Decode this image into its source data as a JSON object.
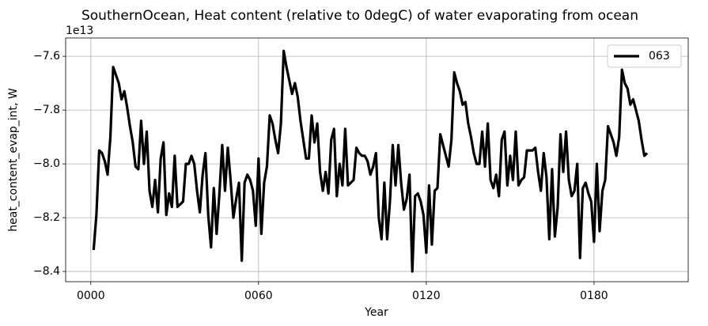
{
  "chart_data": {
    "type": "line",
    "title": "SouthernOcean, Heat content (relative to 0degC) of water evaporating from ocean",
    "xlabel": "Year",
    "ylabel": "heat_content_evap_int, W",
    "y_offset_label": "1e13",
    "x": [
      1,
      2,
      3,
      4,
      5,
      6,
      7,
      8,
      9,
      10,
      11,
      12,
      13,
      14,
      15,
      16,
      17,
      18,
      19,
      20,
      21,
      22,
      23,
      24,
      25,
      26,
      27,
      28,
      29,
      30,
      31,
      32,
      33,
      34,
      35,
      36,
      37,
      38,
      39,
      40,
      41,
      42,
      43,
      44,
      45,
      46,
      47,
      48,
      49,
      50,
      51,
      52,
      53,
      54,
      55,
      56,
      57,
      58,
      59,
      60,
      61,
      62,
      63,
      64,
      65,
      66,
      67,
      68,
      69,
      70,
      71,
      72,
      73,
      74,
      75,
      76,
      77,
      78,
      79,
      80,
      81,
      82,
      83,
      84,
      85,
      86,
      87,
      88,
      89,
      90,
      91,
      92,
      93,
      94,
      95,
      96,
      97,
      98,
      99,
      100,
      101,
      102,
      103,
      104,
      105,
      106,
      107,
      108,
      109,
      110,
      111,
      112,
      113,
      114,
      115,
      116,
      117,
      118,
      119,
      120,
      121,
      122,
      123,
      124,
      125,
      126,
      127,
      128,
      129,
      130,
      131,
      132,
      133,
      134,
      135,
      136,
      137,
      138,
      139,
      140,
      141,
      142,
      143,
      144,
      145,
      146,
      147,
      148,
      149,
      150,
      151,
      152,
      153,
      154,
      155,
      156,
      157,
      158,
      159,
      160,
      161,
      162,
      163,
      164,
      165,
      166,
      167,
      168,
      169,
      170,
      171,
      172,
      173,
      174,
      175,
      176,
      177,
      178,
      179,
      180,
      181,
      182,
      183,
      184,
      185,
      186,
      187,
      188,
      189,
      190,
      191,
      192,
      193,
      194,
      195,
      196,
      197,
      198,
      199
    ],
    "series": [
      {
        "name": "063",
        "color": "#000000",
        "values": [
          -8.32,
          -8.19,
          -7.95,
          -7.96,
          -7.99,
          -8.04,
          -7.9,
          -7.64,
          -7.67,
          -7.7,
          -7.76,
          -7.73,
          -7.79,
          -7.86,
          -7.92,
          -8.01,
          -8.02,
          -7.84,
          -8.0,
          -7.88,
          -8.1,
          -8.16,
          -8.06,
          -8.18,
          -7.98,
          -7.92,
          -8.19,
          -8.11,
          -8.16,
          -7.97,
          -8.16,
          -8.15,
          -8.14,
          -8.0,
          -8.0,
          -7.97,
          -8.0,
          -8.1,
          -8.18,
          -8.04,
          -7.96,
          -8.19,
          -8.31,
          -8.09,
          -8.26,
          -8.11,
          -7.93,
          -8.1,
          -7.94,
          -8.06,
          -8.2,
          -8.13,
          -8.07,
          -8.36,
          -8.07,
          -8.04,
          -8.06,
          -8.1,
          -8.23,
          -7.98,
          -8.26,
          -8.07,
          -8.01,
          -7.82,
          -7.85,
          -7.91,
          -7.96,
          -7.85,
          -7.58,
          -7.64,
          -7.69,
          -7.74,
          -7.7,
          -7.75,
          -7.84,
          -7.91,
          -7.98,
          -7.98,
          -7.82,
          -7.92,
          -7.85,
          -8.03,
          -8.1,
          -8.03,
          -8.11,
          -7.91,
          -7.87,
          -8.12,
          -8.0,
          -8.08,
          -7.87,
          -8.08,
          -8.07,
          -8.06,
          -7.94,
          -7.96,
          -7.97,
          -7.97,
          -7.99,
          -8.04,
          -8.01,
          -7.96,
          -8.2,
          -8.28,
          -8.07,
          -8.28,
          -8.14,
          -7.93,
          -8.08,
          -7.93,
          -8.07,
          -8.17,
          -8.13,
          -8.04,
          -8.4,
          -8.12,
          -8.11,
          -8.14,
          -8.19,
          -8.33,
          -8.08,
          -8.3,
          -8.1,
          -8.09,
          -7.89,
          -7.93,
          -7.97,
          -8.01,
          -7.91,
          -7.66,
          -7.7,
          -7.73,
          -7.78,
          -7.77,
          -7.85,
          -7.9,
          -7.96,
          -8.0,
          -8.0,
          -7.88,
          -8.01,
          -7.85,
          -8.06,
          -8.09,
          -8.04,
          -8.12,
          -7.91,
          -7.88,
          -8.08,
          -7.97,
          -8.06,
          -7.88,
          -8.08,
          -8.06,
          -8.05,
          -7.95,
          -7.95,
          -7.95,
          -7.94,
          -8.03,
          -8.1,
          -7.96,
          -8.05,
          -8.28,
          -8.02,
          -8.27,
          -8.16,
          -7.89,
          -8.03,
          -7.88,
          -8.06,
          -8.12,
          -8.1,
          -8.0,
          -8.35,
          -8.09,
          -8.07,
          -8.11,
          -8.14,
          -8.29,
          -8.0,
          -8.25,
          -8.1,
          -8.06,
          -7.86,
          -7.89,
          -7.92,
          -7.97,
          -7.9,
          -7.65,
          -7.7,
          -7.72,
          -7.78,
          -7.76,
          -7.8,
          -7.84,
          -7.91,
          -7.97,
          -7.96
        ]
      }
    ],
    "xlim": [
      -9,
      213.7
    ],
    "ylim": [
      -8.438,
      -7.532
    ],
    "xticks": [
      {
        "value": 0,
        "label": "0000"
      },
      {
        "value": 60,
        "label": "0060"
      },
      {
        "value": 120,
        "label": "0120"
      },
      {
        "value": 180,
        "label": "0180"
      }
    ],
    "yticks": [
      {
        "value": -8.4,
        "label": "−8.4"
      },
      {
        "value": -8.2,
        "label": "−8.2"
      },
      {
        "value": -8,
        "label": "−8.0"
      },
      {
        "value": -7.8,
        "label": "−7.8"
      },
      {
        "value": -7.6,
        "label": "−7.6"
      }
    ],
    "grid": true,
    "legend": "upper right"
  }
}
